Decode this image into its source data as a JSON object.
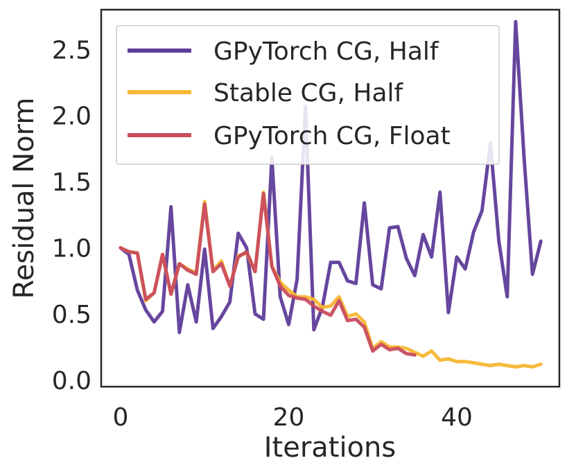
{
  "chart_data": {
    "type": "line",
    "title": "",
    "xlabel": "Iterations",
    "ylabel": "Residual Norm",
    "xlim": [
      -2.3,
      52.2
    ],
    "ylim": [
      -0.05,
      2.8
    ],
    "xticks": [
      0,
      20,
      40
    ],
    "xtick_labels": [
      "0",
      "20",
      "40"
    ],
    "yticks": [
      0.0,
      0.5,
      1.0,
      1.5,
      2.0,
      2.5
    ],
    "ytick_labels": [
      "0.0",
      "0.5",
      "1.0",
      "1.5",
      "2.0",
      "2.5"
    ],
    "legend_position": "top-right",
    "grid": false,
    "series": [
      {
        "name": "GPyTorch CG, Half",
        "color": "#5e3c99",
        "x": [
          0,
          1,
          2,
          3,
          4,
          5,
          6,
          7,
          8,
          9,
          10,
          11,
          12,
          13,
          14,
          15,
          16,
          17,
          18,
          19,
          20,
          21,
          22,
          23,
          24,
          25,
          26,
          27,
          28,
          29,
          30,
          31,
          32,
          33,
          34,
          35,
          36,
          37,
          38,
          39,
          40,
          41,
          42,
          43,
          44,
          45,
          46,
          47,
          48,
          49,
          50
        ],
        "values": [
          1.0,
          0.95,
          0.68,
          0.53,
          0.44,
          0.52,
          1.31,
          0.36,
          0.72,
          0.44,
          0.99,
          0.39,
          0.48,
          0.59,
          1.11,
          1.0,
          0.5,
          0.46,
          1.68,
          0.63,
          0.42,
          0.76,
          2.07,
          0.38,
          0.55,
          0.89,
          0.89,
          0.75,
          0.73,
          1.34,
          0.72,
          0.69,
          1.15,
          1.16,
          0.92,
          0.79,
          1.1,
          0.93,
          1.42,
          0.51,
          0.93,
          0.84,
          1.12,
          1.28,
          1.79,
          1.05,
          0.63,
          2.71,
          1.68,
          0.8,
          1.05
        ]
      },
      {
        "name": "Stable CG, Half",
        "color": "#f7b733",
        "x": [
          0,
          1,
          2,
          3,
          4,
          5,
          6,
          7,
          8,
          9,
          10,
          11,
          12,
          13,
          14,
          15,
          16,
          17,
          18,
          19,
          20,
          21,
          22,
          23,
          24,
          25,
          26,
          27,
          28,
          29,
          30,
          31,
          32,
          33,
          34,
          35,
          36,
          37,
          38,
          39,
          40,
          41,
          42,
          43,
          44,
          45,
          46,
          47,
          48,
          49,
          50
        ],
        "values": [
          1.0,
          0.97,
          0.96,
          0.6,
          0.66,
          0.95,
          0.65,
          0.88,
          0.84,
          0.81,
          1.35,
          0.83,
          0.9,
          0.71,
          0.94,
          0.96,
          0.82,
          1.42,
          0.86,
          0.74,
          0.68,
          0.63,
          0.63,
          0.61,
          0.55,
          0.56,
          0.63,
          0.48,
          0.5,
          0.44,
          0.24,
          0.29,
          0.25,
          0.25,
          0.24,
          0.21,
          0.18,
          0.22,
          0.15,
          0.16,
          0.14,
          0.14,
          0.13,
          0.12,
          0.11,
          0.12,
          0.11,
          0.1,
          0.11,
          0.1,
          0.12
        ]
      },
      {
        "name": "GPyTorch CG, Float",
        "color": "#c94c5e",
        "x": [
          0,
          1,
          2,
          3,
          4,
          5,
          6,
          7,
          8,
          9,
          10,
          11,
          12,
          13,
          14,
          15,
          16,
          17,
          18,
          19,
          20,
          21,
          22,
          23,
          24,
          25,
          26,
          27,
          28,
          29,
          30,
          31,
          32,
          33,
          34,
          35
        ],
        "values": [
          1.0,
          0.97,
          0.96,
          0.61,
          0.66,
          0.95,
          0.65,
          0.88,
          0.83,
          0.8,
          1.33,
          0.82,
          0.88,
          0.71,
          0.93,
          0.97,
          0.82,
          1.41,
          0.86,
          0.71,
          0.64,
          0.62,
          0.61,
          0.56,
          0.52,
          0.49,
          0.6,
          0.45,
          0.46,
          0.4,
          0.22,
          0.27,
          0.23,
          0.24,
          0.2,
          0.19
        ]
      }
    ]
  }
}
